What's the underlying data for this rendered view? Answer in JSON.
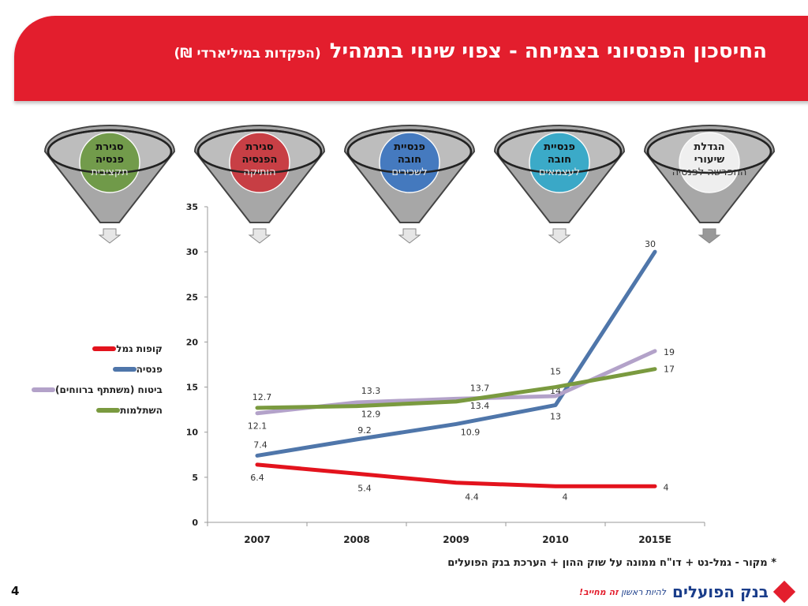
{
  "header": {
    "title": "החיסכון הפנסיוני בצמיחה - צפוי שינוי בתמהיל",
    "subtitle": "(הפקדות במיליארדי ₪)"
  },
  "funnels": [
    {
      "label_top": "סגירת",
      "label_mid": "פנסיה",
      "label_bottom": "תקציבית",
      "color": "#6e9a45"
    },
    {
      "label_top": "סגירת",
      "label_mid": "הפנסיה",
      "label_bottom": "הותיקה",
      "color": "#c9393f"
    },
    {
      "label_top": "פנסיית",
      "label_mid": "חובה",
      "label_bottom": "לשכירים",
      "color": "#3f77c0"
    },
    {
      "label_top": "פנסיית",
      "label_mid": "חובה",
      "label_bottom": "לעצמאים",
      "color": "#35a9c9"
    },
    {
      "label_top": "הגדלת",
      "label_mid": "שיעורי",
      "label_bottom": "ההפרשה לפנסיה",
      "color": "#f2f2f2"
    }
  ],
  "colors": {
    "kupot": "#e3131d",
    "pensia": "#4f76aa",
    "bituach": "#b3a2c9",
    "hishtalmut": "#7a9a3f"
  },
  "chart_data": {
    "type": "line",
    "categories": [
      "2007",
      "2008",
      "2009",
      "2010",
      "2015E"
    ],
    "ylim": [
      0,
      35
    ],
    "yticks": [
      "0",
      "5",
      "10",
      "15",
      "20",
      "25",
      "30",
      "35"
    ],
    "series": [
      {
        "name": "קופות גמל",
        "color_key": "kupot",
        "values": [
          6.4,
          5.4,
          4.4,
          4,
          4
        ],
        "labels": [
          "6.4",
          "5.4",
          "4.4",
          "4",
          "4"
        ]
      },
      {
        "name": "פנסיה",
        "color_key": "pensia",
        "values": [
          7.4,
          9.2,
          10.9,
          13,
          30
        ],
        "labels": [
          "7.4",
          "9.2",
          "10.9",
          "13",
          "30"
        ]
      },
      {
        "name": "ביטוח (משתתף ברווחים)",
        "color_key": "bituach",
        "values": [
          12.1,
          13.3,
          13.7,
          14,
          19
        ],
        "labels": [
          "12.1",
          "13.3",
          "13.7",
          "14",
          "19"
        ]
      },
      {
        "name": "השתלמות",
        "color_key": "hishtalmut",
        "values": [
          12.7,
          12.9,
          13.4,
          15,
          17
        ],
        "labels": [
          "12.7",
          "12.9",
          "13.4",
          "15",
          "17"
        ]
      }
    ]
  },
  "source": "* מקור - גמל-נט + דו\"ח ממונה על שוק ההון + הערכת בנק הפועלים",
  "page_number": "4",
  "logo": {
    "bank": "בנק הפועלים",
    "slogan_a": "להיות ראשון",
    "slogan_b": "זה מחייב!"
  }
}
